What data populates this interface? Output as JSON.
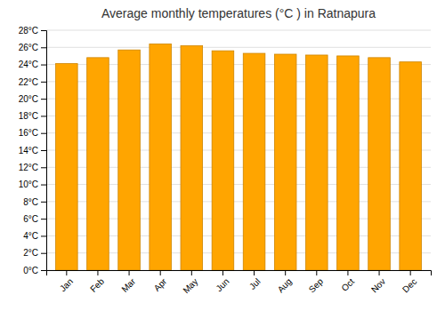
{
  "chart_data": {
    "type": "bar",
    "title": "Average monthly temperatures (°C ) in Ratnapura",
    "categories": [
      "Jan",
      "Feb",
      "Mar",
      "Apr",
      "May",
      "Jun",
      "Jul",
      "Aug",
      "Sep",
      "Oct",
      "Nov",
      "Dec"
    ],
    "values": [
      24.1,
      24.8,
      25.7,
      26.4,
      26.2,
      25.6,
      25.3,
      25.2,
      25.1,
      25.0,
      24.8,
      24.3
    ],
    "color": "#FFA500",
    "ylim": [
      0,
      28
    ],
    "yticks": [
      {
        "value": 0,
        "label": "0°C"
      },
      {
        "value": 2,
        "label": "2°C"
      },
      {
        "value": 4,
        "label": "4°C"
      },
      {
        "value": 6,
        "label": "6°C"
      },
      {
        "value": 8,
        "label": "8°C"
      },
      {
        "value": 10,
        "label": "10°C"
      },
      {
        "value": 12,
        "label": "12°C"
      },
      {
        "value": 14,
        "label": "14°C"
      },
      {
        "value": 16,
        "label": "16°C"
      },
      {
        "value": 18,
        "label": "18°C"
      },
      {
        "value": 20,
        "label": "20°C"
      },
      {
        "value": 22,
        "label": "22°C"
      },
      {
        "value": 24,
        "label": "24°C"
      },
      {
        "value": 26,
        "label": "26°C"
      },
      {
        "value": 28,
        "label": "28°C"
      }
    ],
    "grid": true
  }
}
